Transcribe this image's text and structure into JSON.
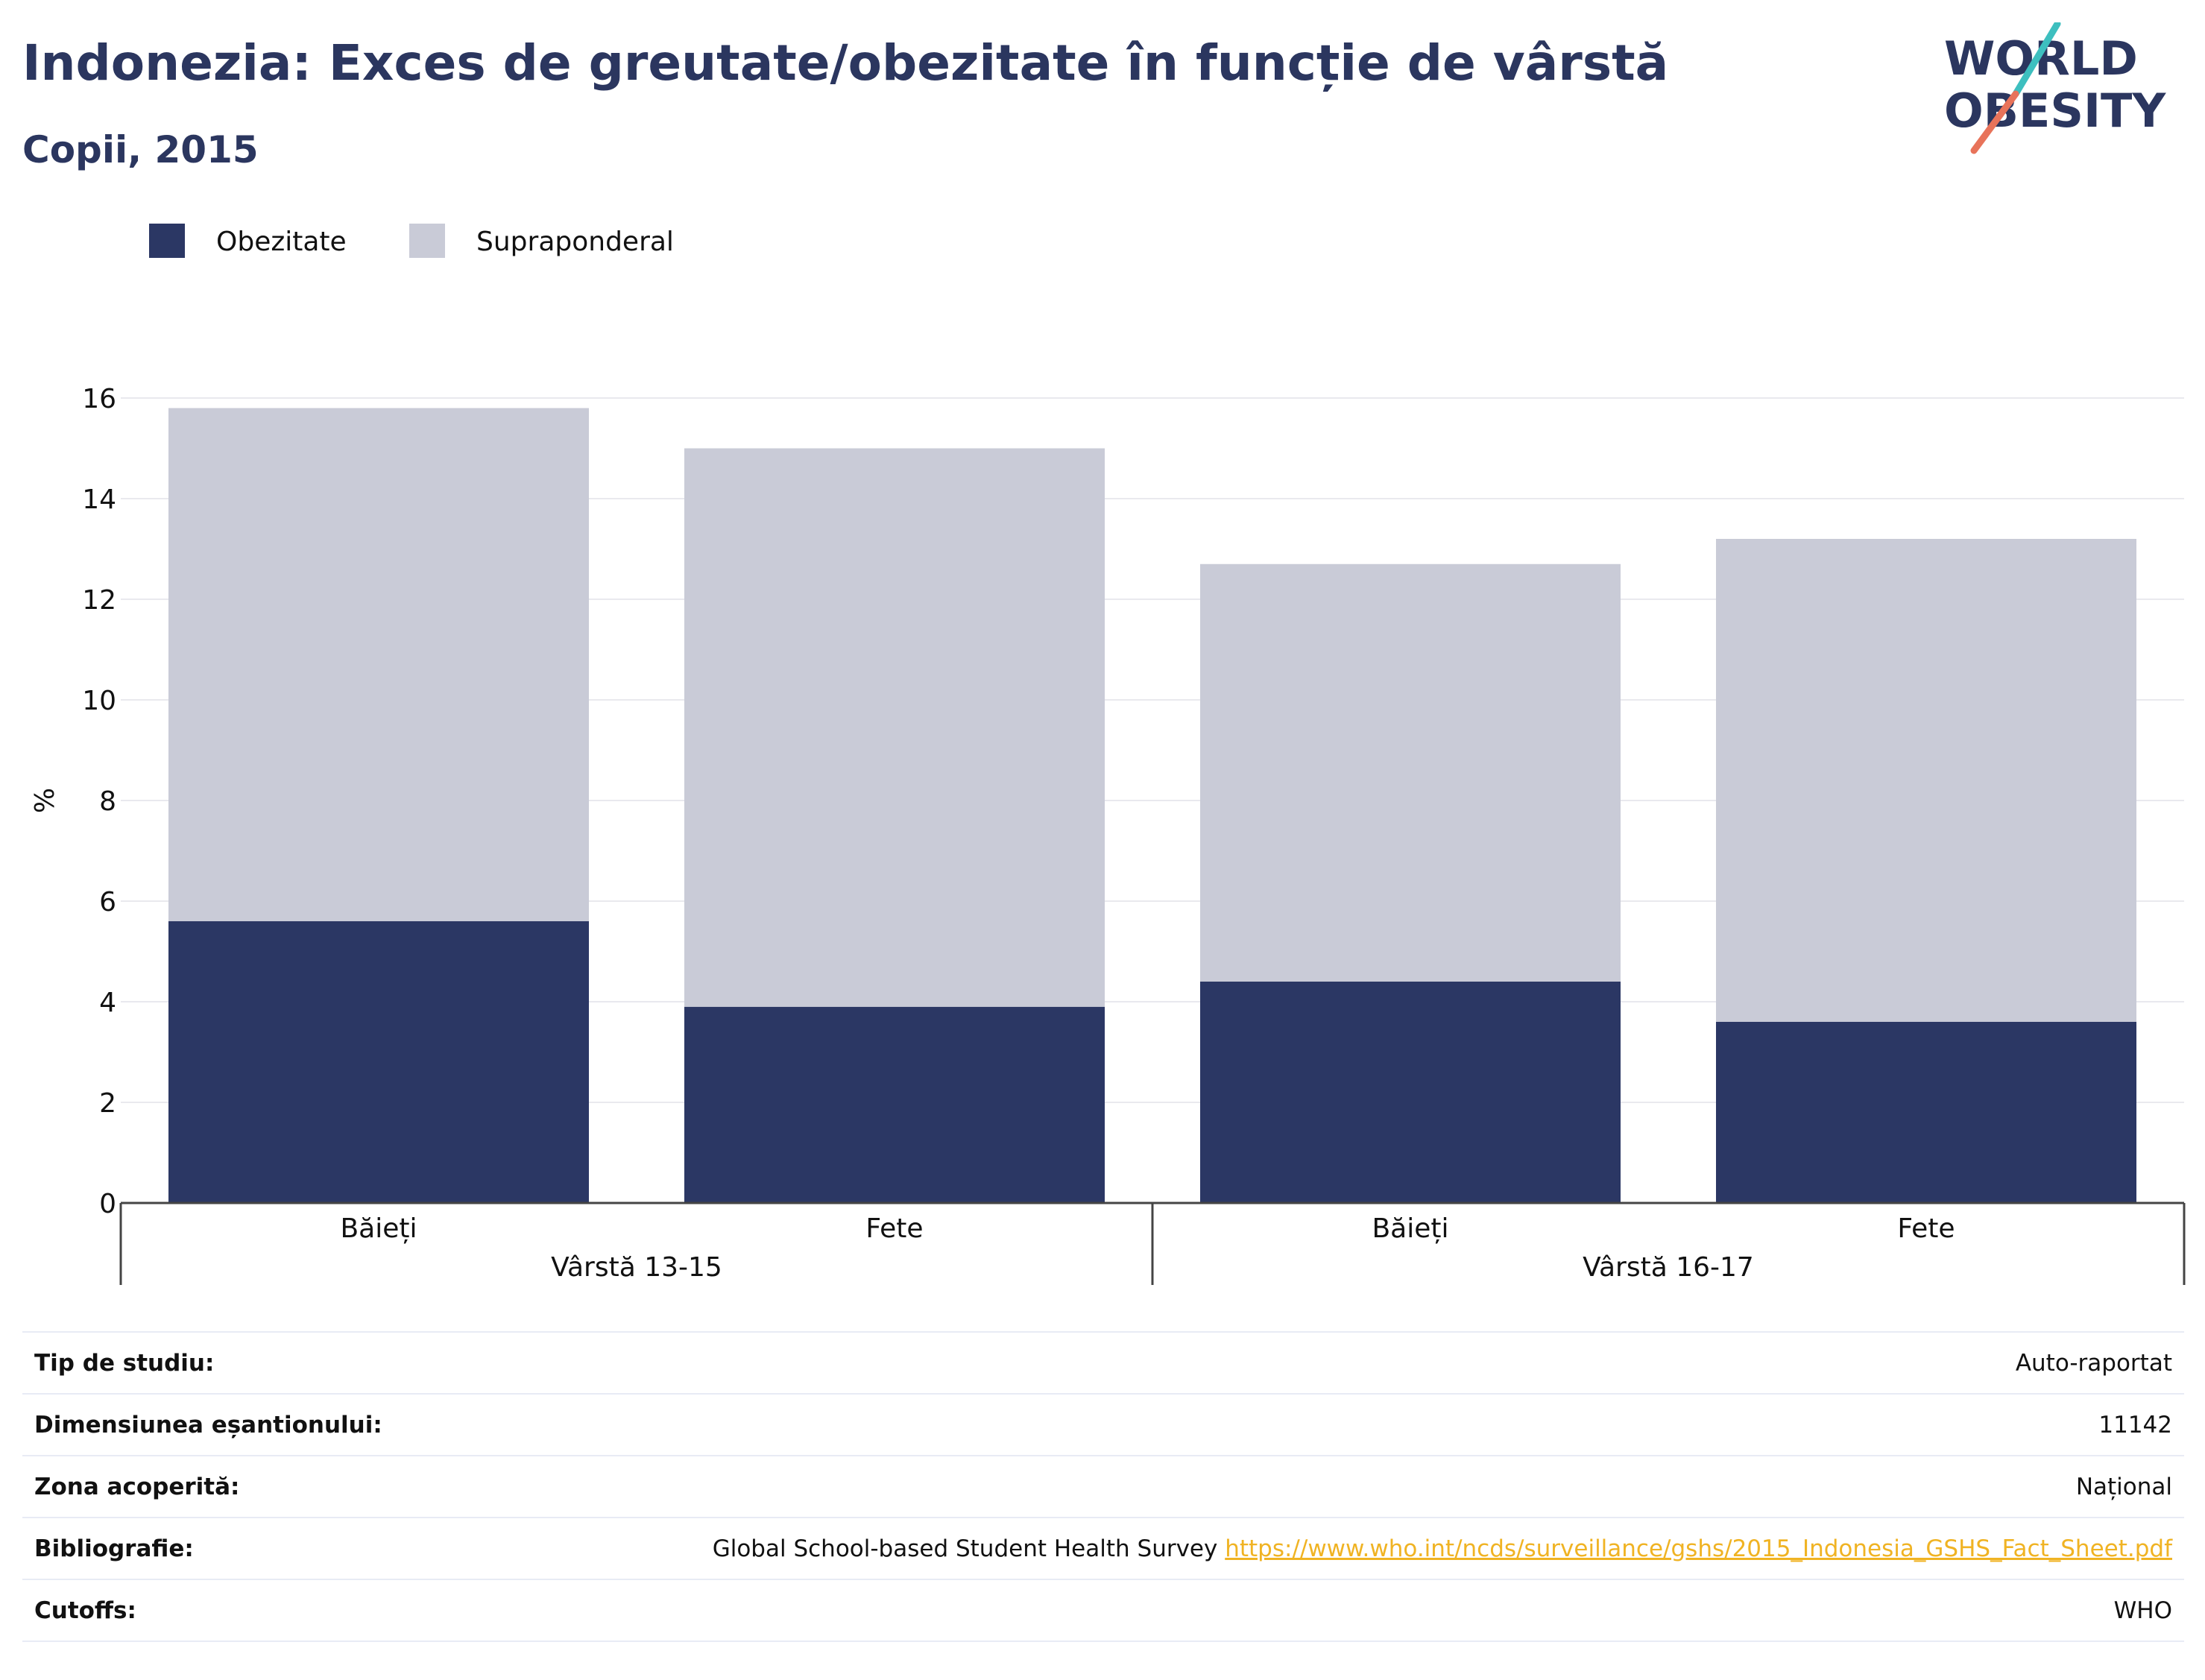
{
  "header": {
    "title": "Indonezia: Exces de greutate/obezitate în funcție de vârstă",
    "subtitle": "Copii, 2015"
  },
  "logo": {
    "line1": "WORLD",
    "line2": "OBESITY",
    "colors": {
      "text": "#2b365f",
      "slash_top": "#3dbfbf",
      "slash_bottom": "#e8735a"
    }
  },
  "chart_data": {
    "type": "bar",
    "stacked": true,
    "ylabel": "%",
    "ylim": [
      0,
      16
    ],
    "yticks": [
      0,
      2,
      4,
      6,
      8,
      10,
      12,
      14,
      16
    ],
    "grid": true,
    "legend_position": "top-left",
    "categories": [
      "Băieți",
      "Fete",
      "Băieți",
      "Fete"
    ],
    "groups": [
      {
        "label": "Vârstă 13-15",
        "categories": [
          0,
          1
        ]
      },
      {
        "label": "Vârstă 16-17",
        "categories": [
          2,
          3
        ]
      }
    ],
    "series": [
      {
        "name": "Obezitate",
        "color": "#2b3764",
        "values": [
          5.6,
          3.9,
          4.4,
          3.6
        ]
      },
      {
        "name": "Supraponderal",
        "color": "#c9cbd7",
        "values": [
          10.2,
          11.1,
          8.3,
          9.6
        ]
      }
    ]
  },
  "info": {
    "rows": [
      {
        "label": "Tip de studiu:",
        "value": "Auto-raportat"
      },
      {
        "label": "Dimensiunea eșantionului:",
        "value": "11142"
      },
      {
        "label": "Zona acoperită:",
        "value": "Național"
      },
      {
        "label": "Bibliografie:",
        "value": "Global School-based Student Health Survey",
        "link": "https://www.who.int/ncds/surveillance/gshs/2015_Indonesia_GSHS_Fact_Sheet.pdf"
      },
      {
        "label": "Cutoffs:",
        "value": "WHO"
      }
    ]
  }
}
